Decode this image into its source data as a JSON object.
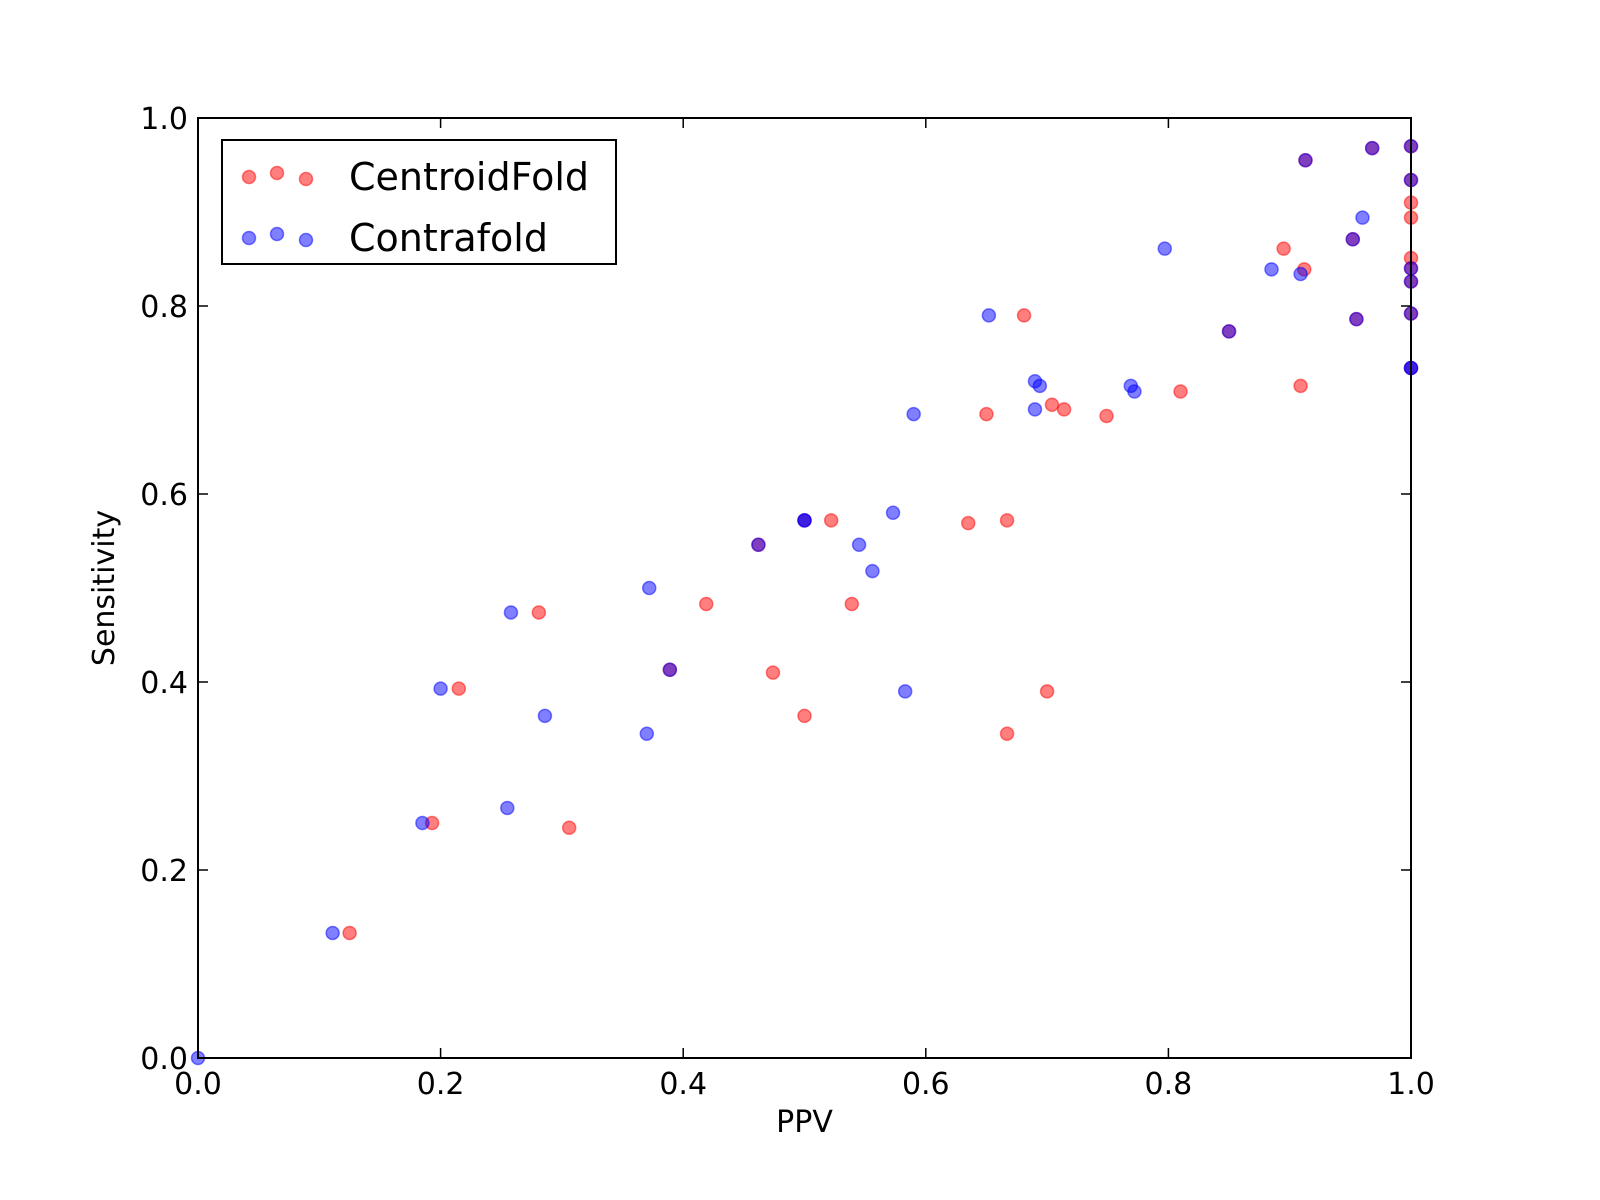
{
  "chart_data": {
    "type": "scatter",
    "xlabel": "PPV",
    "ylabel": "Sensitivity",
    "xlim": [
      0,
      1
    ],
    "ylim": [
      0,
      1
    ],
    "xticks": [
      "0.0",
      "0.2",
      "0.4",
      "0.6",
      "0.8",
      "1.0"
    ],
    "yticks": [
      "0.0",
      "0.2",
      "0.4",
      "0.6",
      "0.8",
      "1.0"
    ],
    "grid": false,
    "legend_position": "top-left",
    "series": [
      {
        "name": "CentroidFold",
        "color": "#ff0000",
        "points": [
          [
            0.125,
            0.133
          ],
          [
            0.193,
            0.25
          ],
          [
            0.215,
            0.393
          ],
          [
            0.281,
            0.474
          ],
          [
            0.306,
            0.245
          ],
          [
            0.389,
            0.413
          ],
          [
            0.419,
            0.483
          ],
          [
            0.462,
            0.546
          ],
          [
            0.474,
            0.41
          ],
          [
            0.5,
            0.364
          ],
          [
            0.5,
            0.572
          ],
          [
            0.522,
            0.572
          ],
          [
            0.539,
            0.483
          ],
          [
            0.635,
            0.569
          ],
          [
            0.65,
            0.685
          ],
          [
            0.667,
            0.345
          ],
          [
            0.667,
            0.572
          ],
          [
            0.681,
            0.79
          ],
          [
            0.7,
            0.39
          ],
          [
            0.704,
            0.695
          ],
          [
            0.714,
            0.69
          ],
          [
            0.749,
            0.683
          ],
          [
            0.81,
            0.709
          ],
          [
            0.85,
            0.773
          ],
          [
            0.895,
            0.861
          ],
          [
            0.909,
            0.715
          ],
          [
            0.912,
            0.839
          ],
          [
            0.913,
            0.955
          ],
          [
            0.952,
            0.871
          ],
          [
            0.955,
            0.786
          ],
          [
            0.968,
            0.968
          ],
          [
            1.0,
            0.97
          ],
          [
            1.0,
            0.934
          ],
          [
            1.0,
            0.91
          ],
          [
            1.0,
            0.894
          ],
          [
            1.0,
            0.851
          ],
          [
            1.0,
            0.84
          ],
          [
            1.0,
            0.826
          ],
          [
            1.0,
            0.792
          ],
          [
            1.0,
            0.734
          ]
        ]
      },
      {
        "name": "Contrafold",
        "color": "#0000ff",
        "points": [
          [
            0.0,
            0.0
          ],
          [
            0.111,
            0.133
          ],
          [
            0.185,
            0.25
          ],
          [
            0.2,
            0.393
          ],
          [
            0.255,
            0.266
          ],
          [
            0.258,
            0.474
          ],
          [
            0.286,
            0.364
          ],
          [
            0.37,
            0.345
          ],
          [
            0.372,
            0.5
          ],
          [
            0.389,
            0.413
          ],
          [
            0.462,
            0.546
          ],
          [
            0.5,
            0.572
          ],
          [
            0.5,
            0.572
          ],
          [
            0.545,
            0.546
          ],
          [
            0.556,
            0.518
          ],
          [
            0.573,
            0.58
          ],
          [
            0.583,
            0.39
          ],
          [
            0.59,
            0.685
          ],
          [
            0.652,
            0.79
          ],
          [
            0.69,
            0.72
          ],
          [
            0.69,
            0.69
          ],
          [
            0.694,
            0.715
          ],
          [
            0.769,
            0.715
          ],
          [
            0.772,
            0.709
          ],
          [
            0.797,
            0.861
          ],
          [
            0.85,
            0.773
          ],
          [
            0.885,
            0.839
          ],
          [
            0.909,
            0.834
          ],
          [
            0.913,
            0.955
          ],
          [
            0.952,
            0.871
          ],
          [
            0.955,
            0.786
          ],
          [
            0.96,
            0.894
          ],
          [
            0.968,
            0.968
          ],
          [
            1.0,
            0.97
          ],
          [
            1.0,
            0.934
          ],
          [
            1.0,
            0.84
          ],
          [
            1.0,
            0.826
          ],
          [
            1.0,
            0.792
          ],
          [
            1.0,
            0.734
          ],
          [
            1.0,
            0.734
          ]
        ]
      }
    ]
  }
}
